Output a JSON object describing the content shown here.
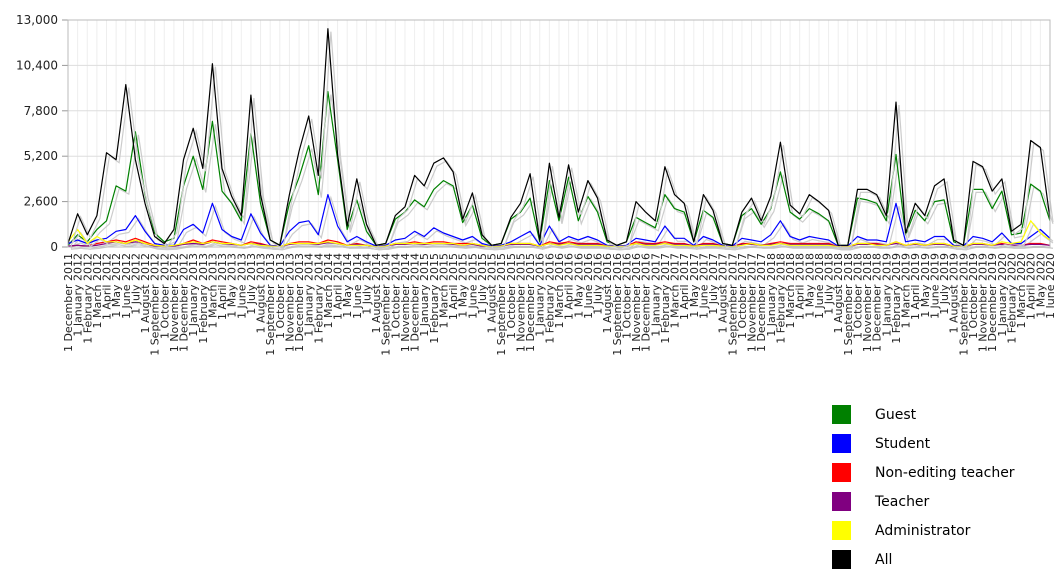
{
  "chart_data": {
    "type": "line",
    "title": "",
    "xlabel": "",
    "ylabel": "",
    "ylim": [
      0,
      13000
    ],
    "yticks": [
      "0",
      "2,600",
      "5,200",
      "7,800",
      "10,400",
      "13,000"
    ],
    "grid": true,
    "legend_position": "bottom-right",
    "x": [
      "1 December 2011",
      "1 January 2012",
      "1 February 2012",
      "1 March 2012",
      "1 April 2012",
      "1 May 2012",
      "1 June 2012",
      "1 July 2012",
      "1 August 2012",
      "1 September 2012",
      "1 October 2012",
      "1 November 2012",
      "1 December 2012",
      "1 January 2013",
      "1 February 2013",
      "1 March 2013",
      "1 April 2013",
      "1 May 2013",
      "1 June 2013",
      "1 July 2013",
      "1 August 2013",
      "1 September 2013",
      "1 October 2013",
      "1 November 2013",
      "1 December 2013",
      "1 January 2014",
      "1 February 2014",
      "1 March 2014",
      "1 April 2014",
      "1 May 2014",
      "1 June 2014",
      "1 July 2014",
      "1 August 2014",
      "1 September 2014",
      "1 October 2014",
      "1 November 2014",
      "1 December 2014",
      "1 January 2015",
      "1 February 2015",
      "1 March 2015",
      "1 April 2015",
      "1 May 2015",
      "1 June 2015",
      "1 July 2015",
      "1 August 2015",
      "1 September 2015",
      "1 October 2015",
      "1 November 2015",
      "1 December 2015",
      "1 January 2016",
      "1 February 2016",
      "1 March 2016",
      "1 April 2016",
      "1 May 2016",
      "1 June 2016",
      "1 July 2016",
      "1 August 2016",
      "1 September 2016",
      "1 October 2016",
      "1 November 2016",
      "1 December 2016",
      "1 January 2017",
      "1 February 2017",
      "1 March 2017",
      "1 April 2017",
      "1 May 2017",
      "1 June 2017",
      "1 July 2017",
      "1 August 2017",
      "1 September 2017",
      "1 October 2017",
      "1 November 2017",
      "1 December 2017",
      "1 January 2018",
      "1 February 2018",
      "1 March 2018",
      "1 April 2018",
      "1 May 2018",
      "1 June 2018",
      "1 July 2018",
      "1 August 2018",
      "1 September 2018",
      "1 October 2018",
      "1 November 2018",
      "1 December 2018",
      "1 January 2019",
      "1 February 2019",
      "1 March 2019",
      "1 April 2019",
      "1 May 2019",
      "1 June 2019",
      "1 July 2019",
      "1 August 2019",
      "1 September 2019",
      "1 October 2019",
      "1 November 2019",
      "1 December 2019",
      "1 January 2020",
      "1 February 2020",
      "1 March 2020",
      "1 April 2020",
      "1 May 2020",
      "1 June 2020"
    ],
    "series": [
      {
        "name": "Guest",
        "color": "#008000",
        "values": [
          100,
          700,
          300,
          1000,
          1500,
          3500,
          3200,
          6600,
          3000,
          800,
          300,
          500,
          3500,
          5200,
          3300,
          7200,
          3200,
          2500,
          1500,
          6500,
          2500,
          400,
          100,
          2500,
          4000,
          5800,
          3000,
          8900,
          5000,
          1000,
          2700,
          900,
          100,
          200,
          1600,
          2000,
          2700,
          2300,
          3300,
          3800,
          3500,
          1400,
          2400,
          500,
          100,
          200,
          1600,
          2000,
          2800,
          300,
          3800,
          1500,
          4000,
          1500,
          2900,
          2000,
          300,
          100,
          300,
          1700,
          1400,
          1100,
          3000,
          2200,
          2000,
          300,
          2100,
          1700,
          200,
          100,
          1800,
          2200,
          1300,
          2200,
          4300,
          2000,
          1600,
          2200,
          1900,
          1500,
          100,
          100,
          2800,
          2700,
          2500,
          1500,
          5300,
          700,
          2100,
          1500,
          2600,
          2700,
          300,
          100,
          3300,
          3300,
          2200,
          3200,
          700,
          800,
          3600,
          3200,
          1500
        ],
        "linewidth": 1.2
      },
      {
        "name": "Student",
        "color": "#0000ff",
        "values": [
          200,
          400,
          200,
          400,
          500,
          900,
          1000,
          1800,
          900,
          200,
          100,
          100,
          1000,
          1300,
          800,
          2500,
          1000,
          600,
          400,
          1900,
          800,
          100,
          50,
          900,
          1400,
          1500,
          700,
          3000,
          1200,
          300,
          600,
          300,
          50,
          100,
          400,
          500,
          900,
          600,
          1100,
          800,
          600,
          400,
          600,
          200,
          50,
          100,
          300,
          600,
          900,
          100,
          1200,
          300,
          600,
          400,
          600,
          400,
          100,
          50,
          100,
          500,
          400,
          300,
          1200,
          500,
          500,
          100,
          600,
          400,
          100,
          50,
          500,
          400,
          300,
          700,
          1500,
          600,
          400,
          600,
          500,
          400,
          50,
          50,
          600,
          400,
          400,
          300,
          2500,
          300,
          400,
          300,
          600,
          600,
          100,
          50,
          600,
          500,
          300,
          800,
          200,
          200,
          600,
          1000,
          500
        ]
      },
      {
        "name": "Non-editing teacher",
        "color": "#ff0000",
        "values": [
          50,
          100,
          50,
          200,
          300,
          400,
          300,
          500,
          300,
          100,
          50,
          50,
          200,
          400,
          200,
          400,
          300,
          200,
          100,
          300,
          200,
          50,
          20,
          200,
          300,
          300,
          200,
          400,
          300,
          100,
          200,
          100,
          20,
          50,
          200,
          200,
          300,
          200,
          300,
          300,
          200,
          200,
          200,
          100,
          20,
          50,
          200,
          200,
          200,
          50,
          300,
          200,
          300,
          200,
          200,
          200,
          50,
          20,
          50,
          300,
          200,
          200,
          300,
          200,
          200,
          50,
          200,
          200,
          50,
          20,
          200,
          200,
          100,
          200,
          300,
          200,
          200,
          200,
          200,
          200,
          20,
          20,
          200,
          200,
          200,
          100,
          300,
          100,
          200,
          100,
          200,
          200,
          50,
          20,
          200,
          200,
          100,
          200,
          100,
          100,
          200,
          200,
          100
        ]
      },
      {
        "name": "Teacher",
        "color": "#800080",
        "values": [
          50,
          100,
          50,
          100,
          200,
          300,
          200,
          300,
          200,
          50,
          20,
          50,
          150,
          200,
          150,
          300,
          200,
          150,
          100,
          200,
          150,
          50,
          20,
          150,
          200,
          200,
          150,
          250,
          200,
          100,
          150,
          100,
          20,
          50,
          150,
          150,
          200,
          150,
          200,
          200,
          150,
          100,
          150,
          50,
          20,
          50,
          150,
          150,
          150,
          50,
          200,
          150,
          200,
          150,
          150,
          150,
          50,
          20,
          50,
          200,
          150,
          150,
          200,
          150,
          150,
          50,
          150,
          150,
          50,
          20,
          150,
          150,
          100,
          150,
          200,
          150,
          150,
          150,
          150,
          150,
          20,
          20,
          150,
          150,
          150,
          100,
          200,
          100,
          150,
          100,
          150,
          150,
          50,
          20,
          150,
          150,
          100,
          150,
          100,
          100,
          150,
          150,
          100
        ]
      },
      {
        "name": "Administrator",
        "color": "#ffff00",
        "values": [
          300,
          1000,
          200,
          600,
          300,
          300,
          200,
          400,
          200,
          100,
          50,
          100,
          200,
          300,
          200,
          300,
          200,
          200,
          100,
          200,
          100,
          50,
          20,
          200,
          200,
          200,
          200,
          300,
          200,
          100,
          100,
          100,
          20,
          50,
          200,
          200,
          200,
          200,
          200,
          200,
          200,
          100,
          200,
          100,
          20,
          50,
          200,
          200,
          200,
          50,
          200,
          100,
          200,
          100,
          100,
          100,
          50,
          20,
          50,
          200,
          100,
          100,
          200,
          100,
          100,
          50,
          100,
          100,
          50,
          20,
          100,
          200,
          100,
          100,
          200,
          100,
          100,
          100,
          100,
          100,
          20,
          20,
          200,
          200,
          100,
          100,
          300,
          100,
          200,
          100,
          200,
          200,
          50,
          20,
          200,
          200,
          100,
          300,
          200,
          300,
          1500,
          800,
          400
        ]
      },
      {
        "name": "All",
        "color": "#000000",
        "values": [
          200,
          1900,
          700,
          1800,
          5400,
          5000,
          9300,
          5000,
          2500,
          600,
          200,
          1000,
          5000,
          6800,
          4500,
          10500,
          4500,
          2900,
          1800,
          8700,
          3000,
          400,
          100,
          3000,
          5500,
          7500,
          4100,
          12500,
          5300,
          1200,
          3900,
          1300,
          100,
          200,
          1800,
          2300,
          4100,
          3500,
          4800,
          5100,
          4300,
          1600,
          3100,
          700,
          100,
          200,
          1700,
          2500,
          4200,
          400,
          4800,
          1700,
          4700,
          2000,
          3800,
          2800,
          400,
          100,
          300,
          2600,
          2000,
          1500,
          4600,
          3000,
          2500,
          300,
          3000,
          2100,
          200,
          100,
          2000,
          2800,
          1500,
          2900,
          6000,
          2400,
          1900,
          3000,
          2600,
          2100,
          100,
          100,
          3300,
          3300,
          3000,
          1800,
          8300,
          800,
          2500,
          1800,
          3500,
          3900,
          400,
          100,
          4900,
          4600,
          3200,
          3900,
          900,
          1300,
          6100,
          5700,
          1600
        ]
      }
    ]
  },
  "legend": {
    "items": [
      {
        "label": "Guest",
        "color": "#008000"
      },
      {
        "label": "Student",
        "color": "#0000ff"
      },
      {
        "label": "Non-editing teacher",
        "color": "#ff0000"
      },
      {
        "label": "Teacher",
        "color": "#800080"
      },
      {
        "label": "Administrator",
        "color": "#ffff00"
      },
      {
        "label": "All",
        "color": "#000000"
      }
    ]
  }
}
